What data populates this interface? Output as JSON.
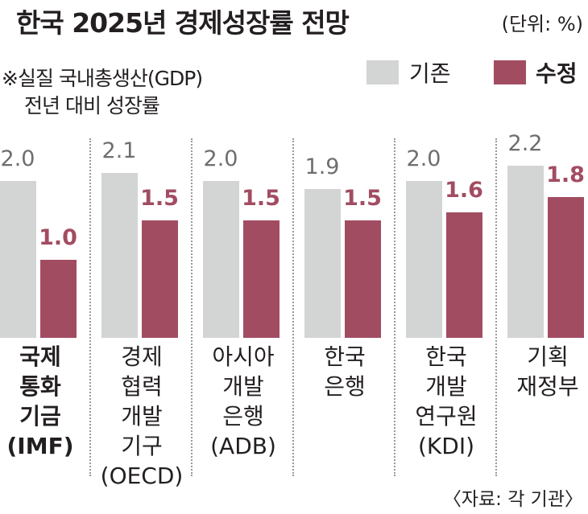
{
  "title": "한국 2025년 경제성장률 전망",
  "unit": "(단위: %)",
  "note_line1": "※실질 국내총생산(GDP)",
  "note_line2": "전년 대비 성장률",
  "source": "〈자료: 각 기관〉",
  "colors": {
    "base": "#d3d4d4",
    "revised": "#a24c62"
  },
  "chart_data": {
    "type": "bar",
    "title": "한국 2025년 경제성장률 전망",
    "ylabel": "%",
    "ylim": [
      0,
      2.4
    ],
    "legend": [
      "기존",
      "수정"
    ],
    "legend_position": "top-right",
    "categories": [
      [
        "국제",
        "통화",
        "기금",
        "(IMF)"
      ],
      [
        "경제",
        "협력",
        "개발",
        "기구",
        "(OECD)"
      ],
      [
        "아시아",
        "개발",
        "은행",
        "(ADB)"
      ],
      [
        "한국",
        "은행"
      ],
      [
        "한국",
        "개발",
        "연구원",
        "(KDI)"
      ],
      [
        "기획",
        "재정부"
      ]
    ],
    "series": [
      {
        "name": "기존",
        "values": [
          2.0,
          2.1,
          2.0,
          1.9,
          2.0,
          2.2
        ],
        "labels": [
          "2.0",
          "2.1",
          "2.0",
          "1.9",
          "2.0",
          "2.2"
        ]
      },
      {
        "name": "수정",
        "values": [
          1.0,
          1.5,
          1.5,
          1.5,
          1.6,
          1.8
        ],
        "labels": [
          "1.0",
          "1.5",
          "1.5",
          "1.5",
          "1.6",
          "1.8"
        ]
      }
    ]
  }
}
